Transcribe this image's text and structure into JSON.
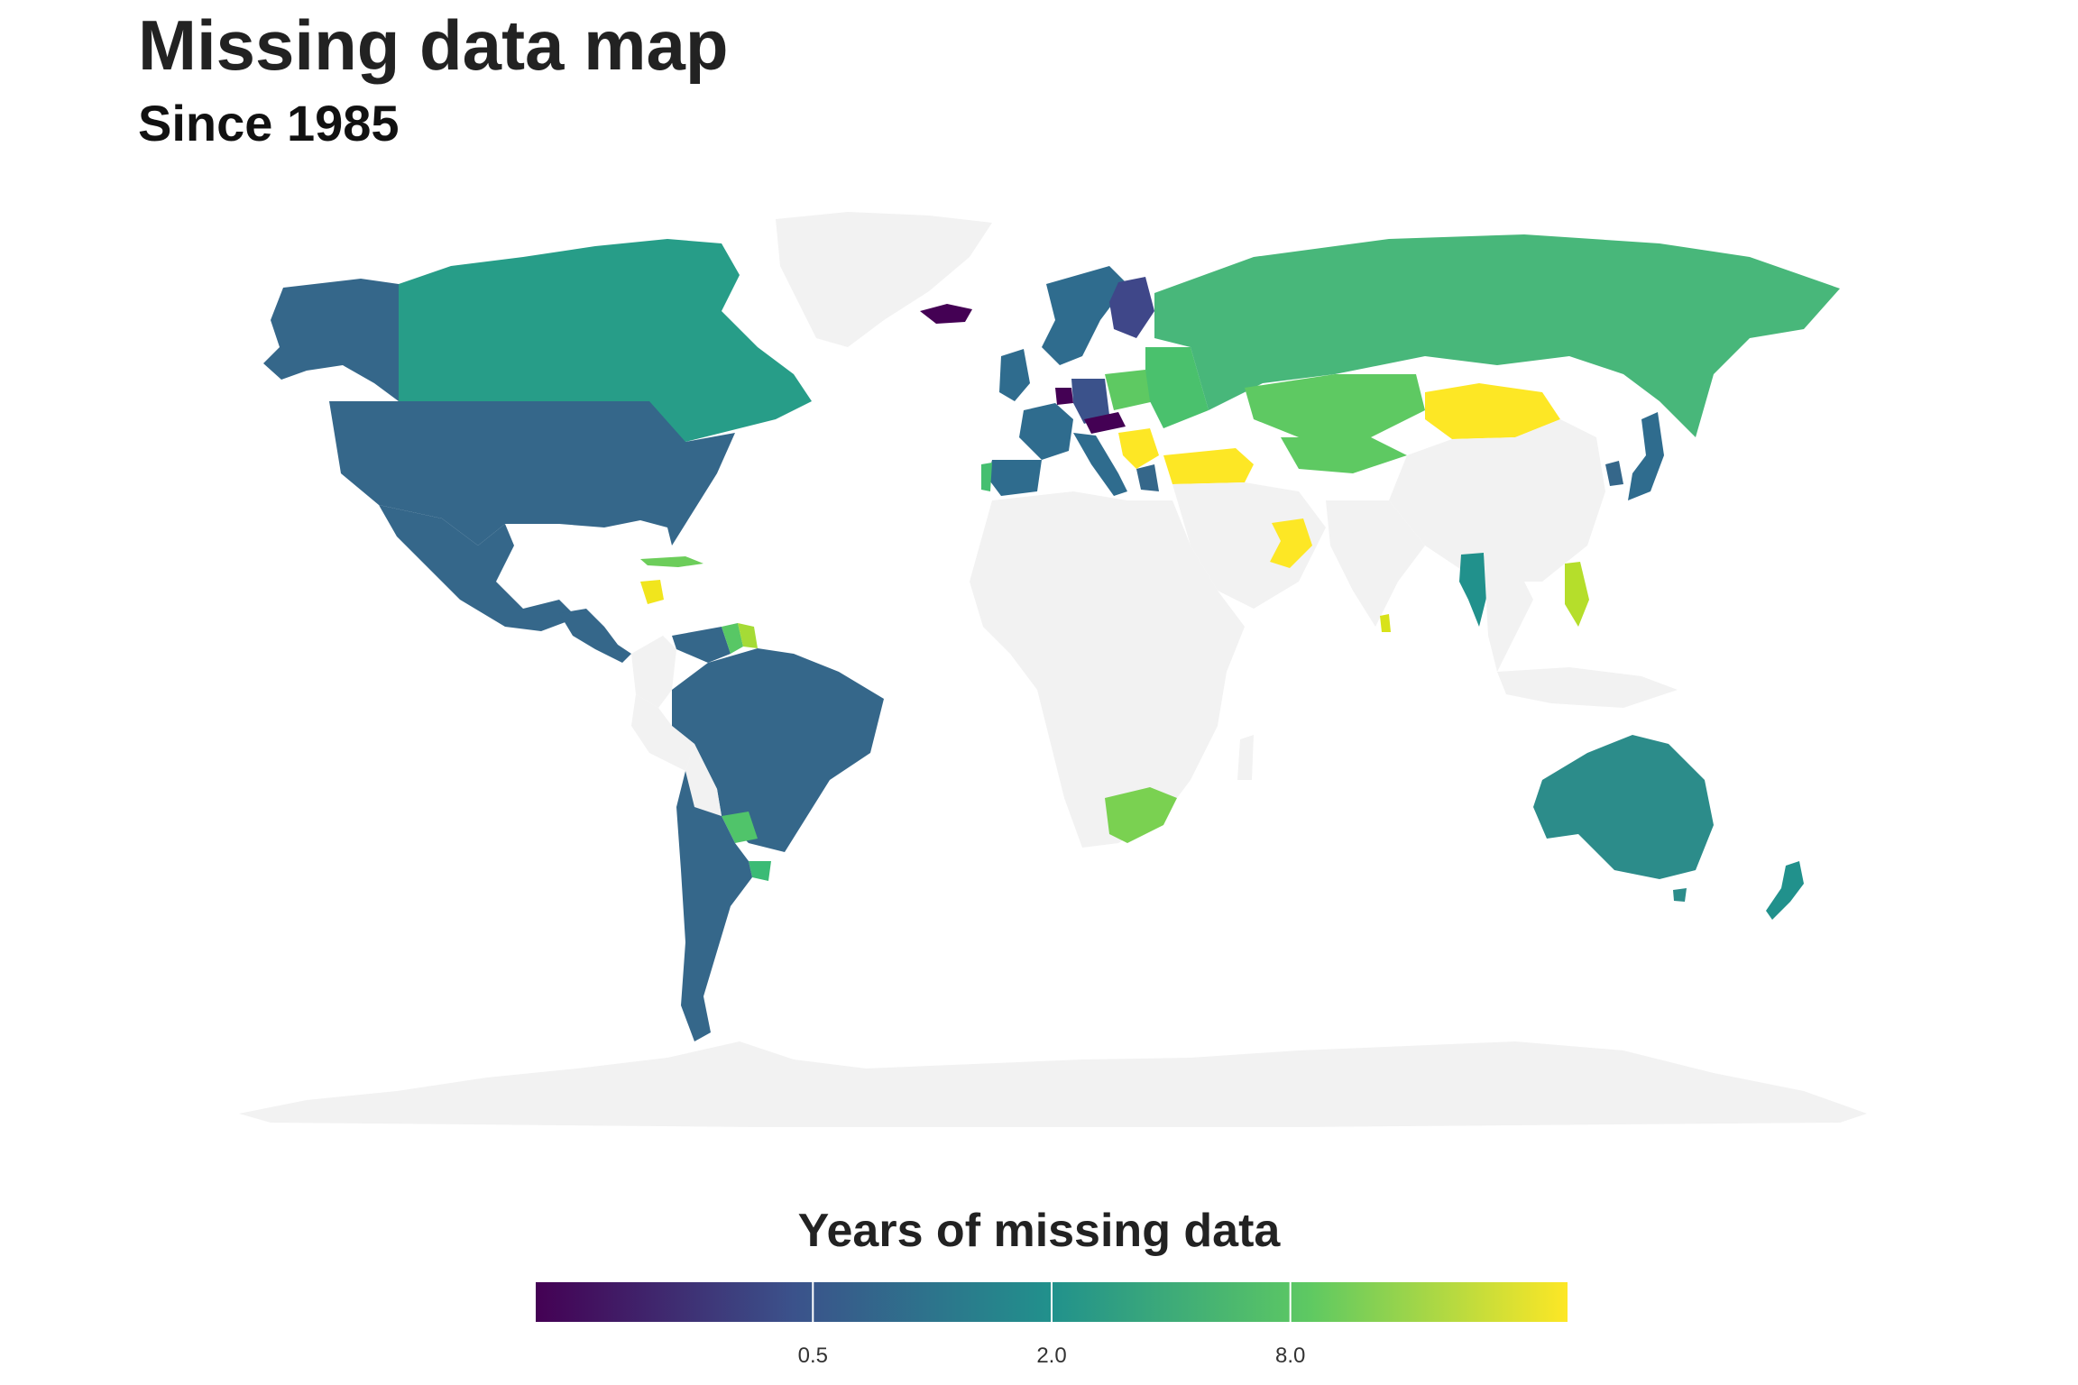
{
  "header": {
    "title": "Missing data map",
    "subtitle": "Since 1985"
  },
  "legend": {
    "title": "Years of missing data",
    "scale": "log",
    "palette": "viridis",
    "colors": [
      "#440154",
      "#3b528b",
      "#21918c",
      "#5ec962",
      "#fde725"
    ],
    "ticks": [
      {
        "label": "0.5",
        "value": 0.5
      },
      {
        "label": "2.0",
        "value": 2.0
      },
      {
        "label": "8.0",
        "value": 8.0
      }
    ]
  },
  "map": {
    "no_data_color": "#f2f2f2",
    "regions": [
      {
        "name": "Greenland",
        "color": "#f2f2f2"
      },
      {
        "name": "Alaska",
        "color": "#35678a"
      },
      {
        "name": "Canada",
        "color": "#279d88"
      },
      {
        "name": "United States",
        "color": "#35678a"
      },
      {
        "name": "Mexico",
        "color": "#35678a"
      },
      {
        "name": "Central America",
        "color": "#35678a"
      },
      {
        "name": "Honduras",
        "color": "#f1e51d"
      },
      {
        "name": "Caribbean",
        "color": "#6ccd5a"
      },
      {
        "name": "Colombia",
        "color": "#f2f2f2"
      },
      {
        "name": "Venezuela",
        "color": "#35678a"
      },
      {
        "name": "Guyana",
        "color": "#58c765"
      },
      {
        "name": "Suriname",
        "color": "#a5db36"
      },
      {
        "name": "Brazil",
        "color": "#35678a"
      },
      {
        "name": "Peru",
        "color": "#f2f2f2"
      },
      {
        "name": "Bolivia",
        "color": "#f2f2f2"
      },
      {
        "name": "Paraguay",
        "color": "#50c46a"
      },
      {
        "name": "Uruguay",
        "color": "#3bbb75"
      },
      {
        "name": "Argentina / Chile",
        "color": "#35678a"
      },
      {
        "name": "Iceland",
        "color": "#440154"
      },
      {
        "name": "Scandinavia",
        "color": "#2f6c8e"
      },
      {
        "name": "Finland",
        "color": "#3f4789"
      },
      {
        "name": "United Kingdom",
        "color": "#2f6c8e"
      },
      {
        "name": "France",
        "color": "#2f6c8e"
      },
      {
        "name": "Spain",
        "color": "#2f6c8e"
      },
      {
        "name": "Portugal",
        "color": "#45bf70"
      },
      {
        "name": "Benelux",
        "color": "#440154"
      },
      {
        "name": "Germany",
        "color": "#3b528b"
      },
      {
        "name": "Austria",
        "color": "#440154"
      },
      {
        "name": "Italy",
        "color": "#2f6c8e"
      },
      {
        "name": "Balkans",
        "color": "#fde725"
      },
      {
        "name": "Poland",
        "color": "#5ec962"
      },
      {
        "name": "Eastern Europe",
        "color": "#4ac16d"
      },
      {
        "name": "Greece",
        "color": "#35678a"
      },
      {
        "name": "Russia",
        "color": "#48b77a"
      },
      {
        "name": "Kazakhstan",
        "color": "#5ec962"
      },
      {
        "name": "Central Asia",
        "color": "#5ec962"
      },
      {
        "name": "Turkey",
        "color": "#fde725"
      },
      {
        "name": "Mongolia",
        "color": "#fde725"
      },
      {
        "name": "China",
        "color": "#f2f2f2"
      },
      {
        "name": "Korea",
        "color": "#35678a"
      },
      {
        "name": "Japan",
        "color": "#2f6c8e"
      },
      {
        "name": "Thailand",
        "color": "#21918c"
      },
      {
        "name": "Philippines",
        "color": "#b5de2b"
      },
      {
        "name": "Sri Lanka",
        "color": "#d8e219"
      },
      {
        "name": "Oman / UAE",
        "color": "#fde725"
      },
      {
        "name": "South Africa",
        "color": "#7ad151"
      },
      {
        "name": "Africa",
        "color": "#f2f2f2"
      },
      {
        "name": "Middle East",
        "color": "#f2f2f2"
      },
      {
        "name": "South Asia",
        "color": "#f2f2f2"
      },
      {
        "name": "Australia",
        "color": "#2c8c8a"
      },
      {
        "name": "New Zealand",
        "color": "#21918c"
      },
      {
        "name": "Antarctica",
        "color": "#f2f2f2"
      }
    ]
  }
}
